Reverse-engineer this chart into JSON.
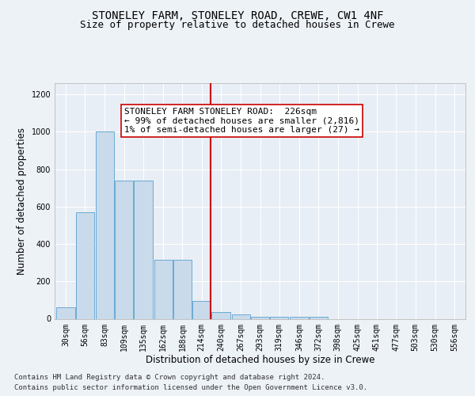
{
  "title1": "STONELEY FARM, STONELEY ROAD, CREWE, CW1 4NF",
  "title2": "Size of property relative to detached houses in Crewe",
  "xlabel": "Distribution of detached houses by size in Crewe",
  "ylabel": "Number of detached properties",
  "footer1": "Contains HM Land Registry data © Crown copyright and database right 2024.",
  "footer2": "Contains public sector information licensed under the Open Government Licence v3.0.",
  "bar_color": "#c9daea",
  "bar_edge_color": "#6aaad4",
  "bar_centers": [
    30,
    56,
    83,
    109,
    135,
    162,
    188,
    214,
    240,
    267,
    293,
    319,
    346,
    372,
    398,
    425,
    451,
    477,
    503,
    530,
    556
  ],
  "bar_heights": [
    60,
    570,
    1000,
    740,
    740,
    315,
    315,
    95,
    38,
    25,
    10,
    10,
    10,
    10,
    0,
    0,
    0,
    0,
    0,
    0,
    0
  ],
  "bin_width": 26,
  "tick_labels": [
    "30sqm",
    "56sqm",
    "83sqm",
    "109sqm",
    "135sqm",
    "162sqm",
    "188sqm",
    "214sqm",
    "240sqm",
    "267sqm",
    "293sqm",
    "319sqm",
    "346sqm",
    "372sqm",
    "398sqm",
    "425sqm",
    "451sqm",
    "477sqm",
    "503sqm",
    "530sqm",
    "556sqm"
  ],
  "vline_x": 226,
  "vline_color": "#cc0000",
  "annotation_text": "STONELEY FARM STONELEY ROAD:  226sqm\n← 99% of detached houses are smaller (2,816)\n1% of semi-detached houses are larger (27) →",
  "ylim": [
    0,
    1260
  ],
  "yticks": [
    0,
    200,
    400,
    600,
    800,
    1000,
    1200
  ],
  "background_color": "#edf2f7",
  "plot_bg_color": "#e8eef5",
  "grid_color": "#ffffff",
  "title1_fontsize": 10,
  "title2_fontsize": 9,
  "xlabel_fontsize": 8.5,
  "ylabel_fontsize": 8.5,
  "tick_fontsize": 7,
  "annotation_fontsize": 8,
  "footer_fontsize": 6.5
}
